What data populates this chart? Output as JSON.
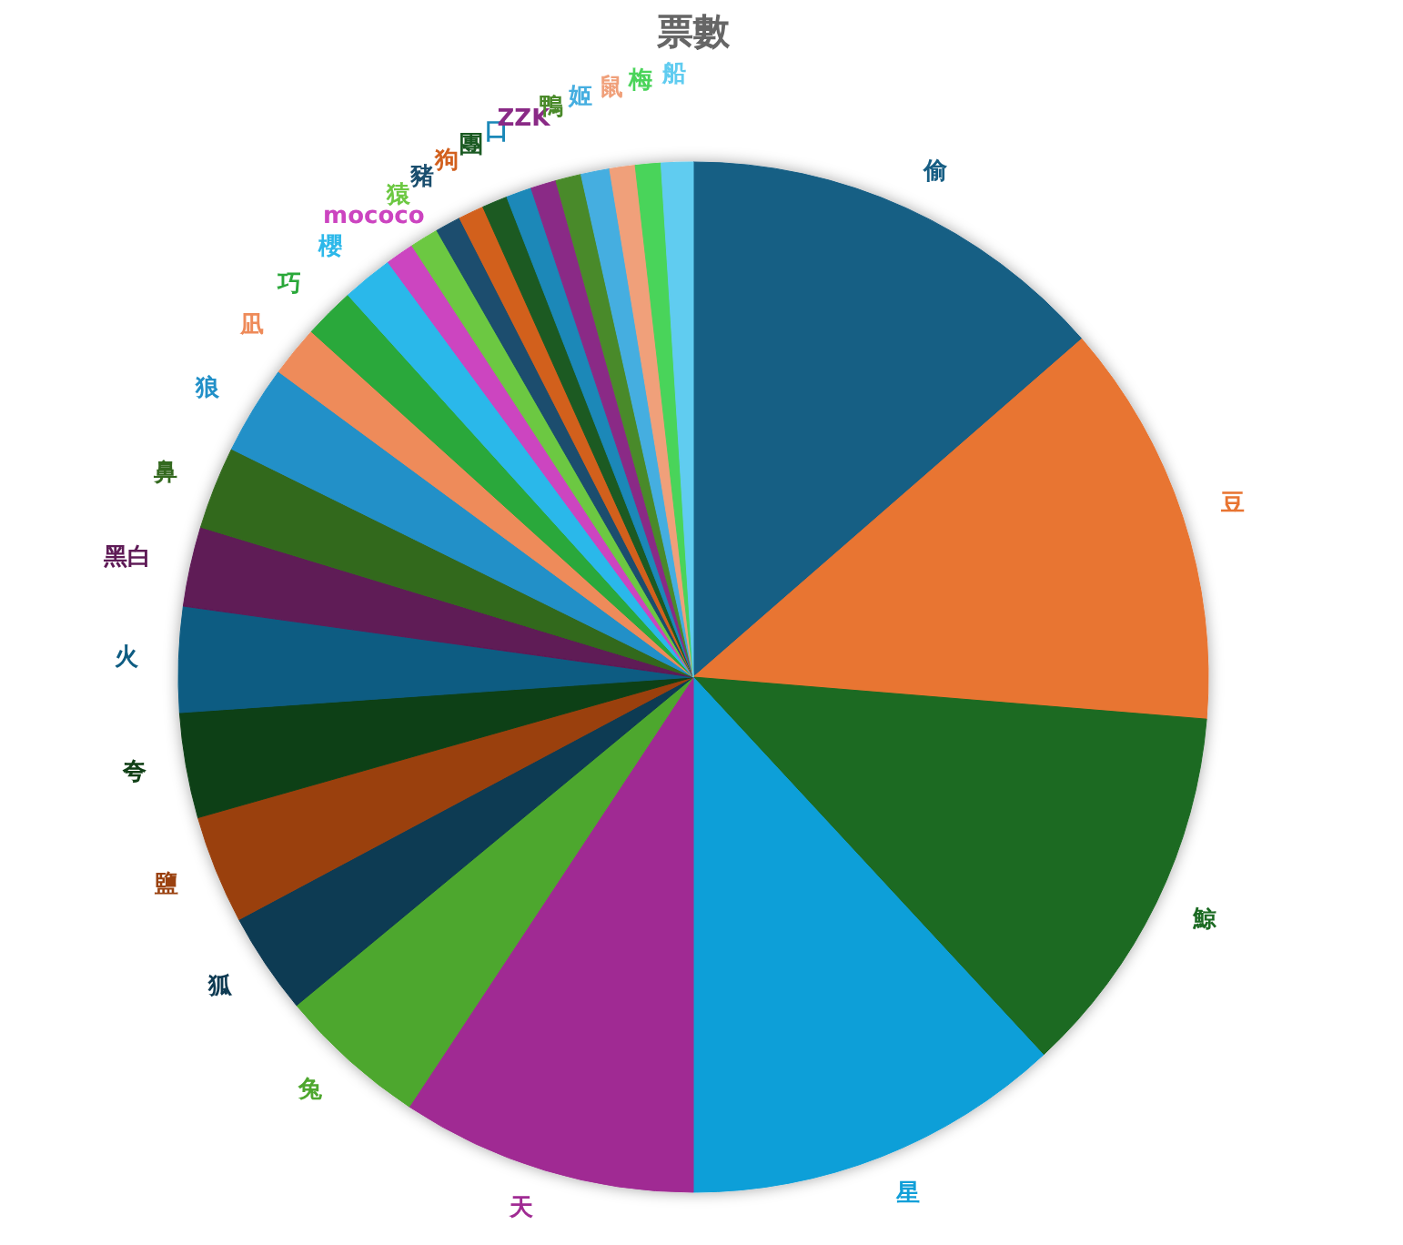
{
  "chart_data": {
    "type": "pie",
    "title": "票數",
    "categories": [
      "偷",
      "豆",
      "鯨",
      "星",
      "天",
      "兔",
      "狐",
      "鹽",
      "夸",
      "火",
      "黑白",
      "鼻",
      "狼",
      "凪",
      "巧",
      "櫻",
      "mococo",
      "猿",
      "豬",
      "狗",
      "團",
      "口",
      "ZZK",
      "鴨",
      "姬",
      "鼠",
      "梅",
      "船"
    ],
    "values": [
      13.6,
      12.7,
      11.8,
      11.9,
      9.3,
      4.7,
      3.2,
      3.4,
      3.3,
      3.3,
      2.5,
      2.6,
      2.8,
      1.6,
      1.6,
      1.6,
      0.9,
      0.9,
      0.8,
      0.8,
      0.8,
      0.8,
      0.8,
      0.8,
      0.9,
      0.8,
      0.8,
      1.0
    ],
    "colors": [
      "#175e84",
      "#e87431",
      "#1b6a22",
      "#119fd8",
      "#a02b93",
      "#4ea72e",
      "#0e3a52",
      "#9a410f",
      "#104016",
      "#0e5c82",
      "#5e1a56",
      "#33691e",
      "#2290c8",
      "#ee8b5a",
      "#2aa83a",
      "#2cb8ea",
      "#cc44c0",
      "#6cc842",
      "#1a4e6e",
      "#d2601e",
      "#1a5a22",
      "#1a88b8",
      "#8a2a86",
      "#4a8a2a",
      "#45aee0",
      "#f0a07a",
      "#4ad45a",
      "#60ccf0"
    ]
  }
}
